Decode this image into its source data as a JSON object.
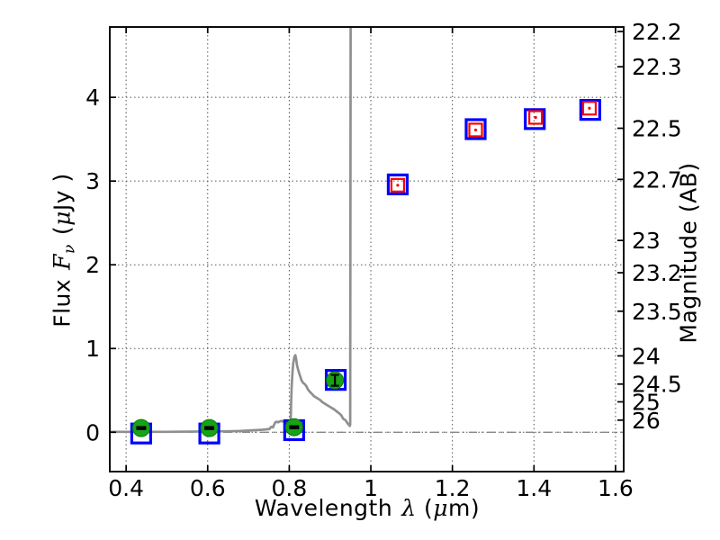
{
  "labels": {
    "x": {
      "pre": "Wavelength",
      "sym": "λ",
      "mid": "(",
      "sym2": "μ",
      "post": "m)"
    },
    "y_left": {
      "pre": "Flux",
      "sym": "F",
      "sub": "ν",
      "mid": "(",
      "sym2": "μ",
      "post": "Jy )"
    },
    "y_right": "Magnitude (AB)"
  },
  "colors": {
    "background": "#ffffff",
    "model_line": "#8f8f8f",
    "zero_line": "#888888",
    "grid": "#555555",
    "axis": "#000000",
    "observed_square": "#0000ff",
    "model_square": "#ff0000",
    "detection_fill": "#16a316",
    "detection_edge": "#0b7a0b",
    "error_bar": "#000000"
  },
  "chart_data": {
    "type": "line",
    "title": "",
    "xlabel": "Wavelength λ (μm)",
    "ylabel": "Flux Fν ( μJy )",
    "ylabel_right": "Magnitude (AB)",
    "xlim": [
      0.36,
      1.62
    ],
    "ylim": [
      -0.47,
      4.84
    ],
    "grid": true,
    "x_tick_values": [
      0.4,
      0.6,
      0.8,
      1.0,
      1.2,
      1.4,
      1.6
    ],
    "x_tick_labels": [
      "0.4",
      "0.6",
      "0.8",
      "1",
      "1.2",
      "1.4",
      "1.6"
    ],
    "y_tick_values": [
      0,
      1,
      2,
      3,
      4
    ],
    "y_tick_labels": [
      "0",
      "1",
      "2",
      "3",
      "4"
    ],
    "mag_tick_values": [
      22.2,
      22.3,
      22.5,
      22.7,
      23,
      23.2,
      23.5,
      24,
      24.5,
      25,
      26
    ],
    "mag_tick_labels": [
      "22.2",
      "22.3",
      "22.5",
      "22.7",
      "23",
      "23.2",
      "23.5",
      "24",
      "24.5",
      "25",
      "26"
    ],
    "mag_zeropoint": 23.9,
    "series": [
      {
        "name": "model-spectrum",
        "type": "line",
        "points": [
          [
            0.36,
            0.005
          ],
          [
            0.5,
            0.005
          ],
          [
            0.6,
            0.01
          ],
          [
            0.65,
            0.012
          ],
          [
            0.68,
            0.015
          ],
          [
            0.7,
            0.02
          ],
          [
            0.72,
            0.025
          ],
          [
            0.735,
            0.03
          ],
          [
            0.745,
            0.035
          ],
          [
            0.752,
            0.04
          ],
          [
            0.7545,
            0.06
          ],
          [
            0.757,
            0.065
          ],
          [
            0.76,
            0.058
          ],
          [
            0.763,
            0.09
          ],
          [
            0.766,
            0.12
          ],
          [
            0.77,
            0.125
          ],
          [
            0.773,
            0.118
          ],
          [
            0.776,
            0.128
          ],
          [
            0.78,
            0.135
          ],
          [
            0.784,
            0.13
          ],
          [
            0.788,
            0.125
          ],
          [
            0.792,
            0.12
          ],
          [
            0.796,
            0.115
          ],
          [
            0.8,
            0.11
          ],
          [
            0.802,
            0.1
          ],
          [
            0.8035,
            0.13
          ],
          [
            0.8045,
            0.32
          ],
          [
            0.806,
            0.55
          ],
          [
            0.808,
            0.72
          ],
          [
            0.81,
            0.83
          ],
          [
            0.8125,
            0.9
          ],
          [
            0.815,
            0.92
          ],
          [
            0.817,
            0.87
          ],
          [
            0.819,
            0.8
          ],
          [
            0.822,
            0.74
          ],
          [
            0.826,
            0.68
          ],
          [
            0.83,
            0.62
          ],
          [
            0.834,
            0.59
          ],
          [
            0.838,
            0.575
          ],
          [
            0.842,
            0.55
          ],
          [
            0.846,
            0.51
          ],
          [
            0.851,
            0.48
          ],
          [
            0.856,
            0.455
          ],
          [
            0.861,
            0.43
          ],
          [
            0.866,
            0.415
          ],
          [
            0.871,
            0.4
          ],
          [
            0.876,
            0.385
          ],
          [
            0.881,
            0.36
          ],
          [
            0.886,
            0.345
          ],
          [
            0.891,
            0.33
          ],
          [
            0.896,
            0.315
          ],
          [
            0.901,
            0.3
          ],
          [
            0.906,
            0.285
          ],
          [
            0.911,
            0.27
          ],
          [
            0.916,
            0.25
          ],
          [
            0.92,
            0.235
          ],
          [
            0.924,
            0.22
          ],
          [
            0.928,
            0.2
          ],
          [
            0.931,
            0.17
          ],
          [
            0.934,
            0.155
          ],
          [
            0.938,
            0.145
          ],
          [
            0.941,
            0.12
          ],
          [
            0.944,
            0.1
          ],
          [
            0.947,
            0.085
          ],
          [
            0.9485,
            0.075
          ],
          [
            0.9495,
            0.09
          ],
          [
            0.9505,
            4.95
          ]
        ]
      },
      {
        "name": "zero-flux-line",
        "type": "hline",
        "y": 0,
        "style": "dash-dot"
      },
      {
        "name": "observed-photometry",
        "type": "scatter",
        "marker": "open-square-blue",
        "points": [
          [
            0.437,
            -0.015
          ],
          [
            0.604,
            -0.015
          ],
          [
            0.812,
            0.025
          ],
          [
            0.914,
            0.625
          ],
          [
            1.066,
            2.96
          ],
          [
            1.257,
            3.62
          ],
          [
            1.402,
            3.74
          ],
          [
            1.538,
            3.85
          ]
        ]
      },
      {
        "name": "model-photometry",
        "type": "scatter",
        "marker": "open-square-red-with-dot",
        "points": [
          [
            1.066,
            2.95
          ],
          [
            1.257,
            3.61
          ],
          [
            1.404,
            3.76
          ],
          [
            1.536,
            3.87
          ]
        ]
      },
      {
        "name": "detections",
        "type": "scatter",
        "marker": "filled-circle-green",
        "points": [
          [
            0.437,
            0.05
          ],
          [
            0.604,
            0.05
          ],
          [
            0.812,
            0.06
          ],
          [
            0.912,
            0.62
          ]
        ]
      }
    ],
    "error_bars": {
      "horizontal": [
        {
          "x": 0.437,
          "y": 0.05,
          "xerr": 0.012
        },
        {
          "x": 0.604,
          "y": 0.05,
          "xerr": 0.012
        },
        {
          "x": 0.812,
          "y": 0.06,
          "xerr": 0.012
        }
      ],
      "vertical": [
        {
          "x": 0.912,
          "y": 0.62,
          "yerr": 0.065
        }
      ]
    }
  }
}
